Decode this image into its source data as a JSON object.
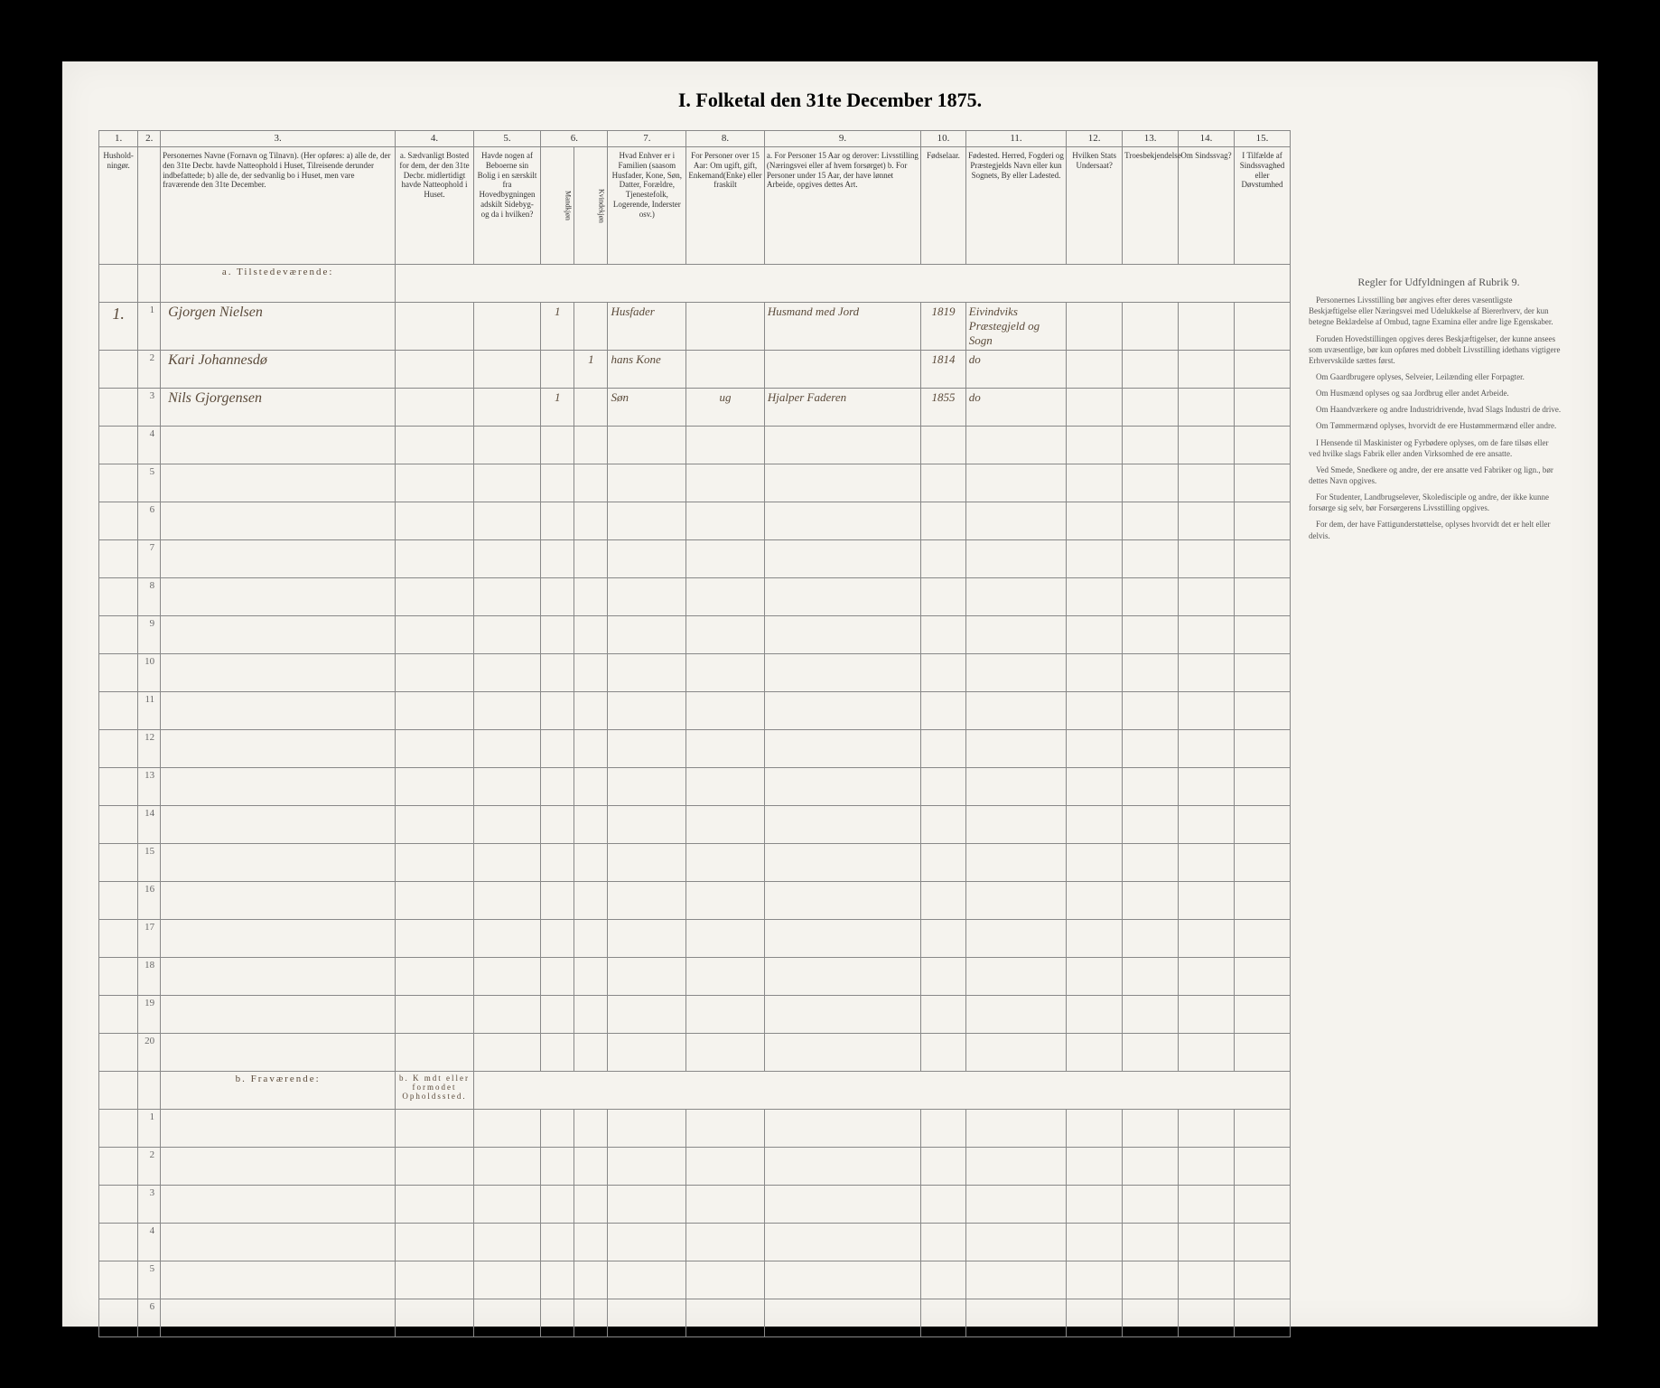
{
  "title": "I. Folketal den 31te December 1875.",
  "colnums": [
    "1.",
    "2.",
    "3.",
    "4.",
    "5.",
    "6.",
    "7.",
    "8.",
    "9.",
    "10.",
    "11.",
    "12.",
    "13.",
    "14.",
    "15."
  ],
  "headers": {
    "c1": "Hushold-ningør.",
    "c2": "",
    "c3": "Personernes Navne (Fornavn og Tilnavn).\n(Her opføres:\na) alle de, der den 31te Decbr. havde Natteophold i Huset, Tilreisende derunder indbefattede;\nb) alle de, der sedvanlig bo i Huset, men vare fraværende den 31te December.",
    "c4": "a. Sædvanligt Bosted for dem, der den 31te Decbr. midlertidigt havde Natteophold i Huset.",
    "c5": "Havde nogen af Beboerne sin Bolig i en særskilt fra Hovedbygningen adskilt Sidebyg- og da i hvilken?",
    "c6a": "Mandkjøn",
    "c6b": "Kvindekjøn",
    "c7": "Hvad Enhver er i Familien (saasom Husfader, Kone, Søn, Datter, Forældre, Tjenestefolk, Logerende, Inderster osv.)",
    "c8": "For Personer over 15 Aar: Om ugift, gift, Enkemand(Enke) eller fraskilt",
    "c9": "a. For Personer 15 Aar og derover: Livsstilling (Næringsvei eller af hvem forsørget)\nb. For Personer under 15 Aar, der have lønnet Arbeide, opgives dettes Art.",
    "c10": "Fødselaar.",
    "c11": "Fødested.\nHerred, Fogderi og Præstegjelds Navn eller kun Sognets, By eller Ladested.",
    "c12": "Hvilken Stats Undersaat?",
    "c13": "Troesbekjendelse",
    "c14": "Om Sindssvag?",
    "c15": "I Tilfælde af Sindssvaghed eller Døvstumhed"
  },
  "section_a": "a. Tilstedeværende:",
  "section_b": "b. Fraværende:",
  "section_b_note": "b. K mdt eller formodet Opholdssted.",
  "rows": [
    {
      "n": "1.",
      "idx": "1",
      "name": "Gjorgen Nielsen",
      "c6a": "1",
      "c7": "Husfader",
      "c9": "Husmand med Jord",
      "c10": "1819",
      "c11": "Eivindviks Præstegjeld og Sogn"
    },
    {
      "n": "",
      "idx": "2",
      "name": "Kari Johannesdø",
      "c6b": "1",
      "c7": "hans Kone",
      "c9": "",
      "c10": "1814",
      "c11": "do"
    },
    {
      "n": "",
      "idx": "3",
      "name": "Nils Gjorgensen",
      "c6a": "1",
      "c7": "Søn",
      "c8": "ug",
      "c9": "Hjalper Faderen",
      "c10": "1855",
      "c11": "do"
    }
  ],
  "blank_a": [
    "4",
    "5",
    "6",
    "7",
    "8",
    "9",
    "10",
    "11",
    "12",
    "13",
    "14",
    "15",
    "16",
    "17",
    "18",
    "19",
    "20"
  ],
  "blank_b": [
    "1",
    "2",
    "3",
    "4",
    "5",
    "6"
  ],
  "sidebar": {
    "title": "Regler for Udfyldningen af Rubrik 9.",
    "paras": [
      "Personernes Livsstilling bør angives efter deres væsentligste Beskjæftigelse eller Næringsvei med Udelukkelse af Biererhverv, der kun betegne Beklædelse af Ombud, tagne Examina eller andre lige Egenskaber.",
      "Foruden Hovedstillingen opgives deres Beskjæftigelser, der kunne ansees som uvæsentlige, bør kun opføres med dobbelt Livsstilling idethans vigtigere Erhvervskilde sættes først.",
      "Om Gaardbrugere oplyses, Selveier, Leilænding eller Forpagter.",
      "Om Husmænd oplyses og saa Jordbrug eller andet Arbeide.",
      "Om Haandværkere og andre Industridrivende, hvad Slags Industri de drive.",
      "Om Tømmermænd oplyses, hvorvidt de ere Hustømmermænd eller andre.",
      "I Hensende til Maskinister og Fyrbødere oplyses, om de fare tilsøs eller ved hvilke slags Fabrik eller anden Virksomhed de ere ansatte.",
      "Ved Smede, Snedkere og andre, der ere ansatte ved Fabriker og lign., bør dettes Navn opgives.",
      "For Studenter, Landbrugselever, Skoledisciple og andre, der ikke kunne forsørge sig selv, bør Forsørgerens Livsstilling opgives.",
      "For dem, der have Fattigunderstøttelse, oplyses hvorvidt det er helt eller delvis."
    ]
  }
}
